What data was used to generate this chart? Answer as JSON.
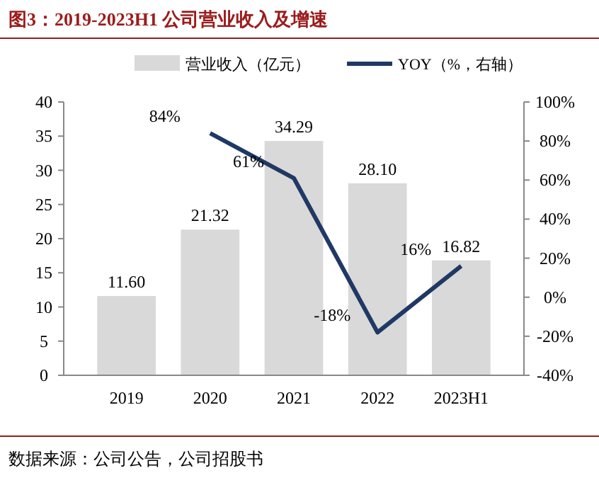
{
  "chart_data": {
    "type": "bar",
    "title": "图3：2019-2023H1 公司营业收入及增速",
    "annotations": [
      "数据来源：公司公告，公司招股书"
    ],
    "categories": [
      "2019",
      "2020",
      "2021",
      "2022",
      "2023H1"
    ],
    "series": [
      {
        "name": "营业收入（亿元）",
        "color": "#d9d9d9",
        "values": [
          11.6,
          21.32,
          34.29,
          28.1,
          16.82
        ],
        "value_labels": [
          "11.60",
          "21.32",
          "34.29",
          "28.10",
          "16.82"
        ]
      },
      {
        "name": "YOY（%，右轴）",
        "type": "line",
        "axis": "y2",
        "color": "#203864",
        "values": [
          null,
          84,
          61,
          -18,
          16
        ],
        "value_labels": [
          null,
          "84%",
          "61%",
          "-18%",
          "16%"
        ]
      }
    ],
    "ylim": [
      0,
      40
    ],
    "yticks": [
      0,
      5,
      10,
      15,
      20,
      25,
      30,
      35,
      40
    ],
    "y2lim": [
      -40,
      100
    ],
    "y2ticks": [
      {
        "value": -40,
        "label": "-40%"
      },
      {
        "value": -20,
        "label": "-20%"
      },
      {
        "value": 0,
        "label": "0%"
      },
      {
        "value": 20,
        "label": "20%"
      },
      {
        "value": 40,
        "label": "40%"
      },
      {
        "value": 60,
        "label": "60%"
      },
      {
        "value": 80,
        "label": "80%"
      },
      {
        "value": 100,
        "label": "100%"
      }
    ],
    "legend": "top",
    "marker": "none",
    "line_style": "solid"
  }
}
